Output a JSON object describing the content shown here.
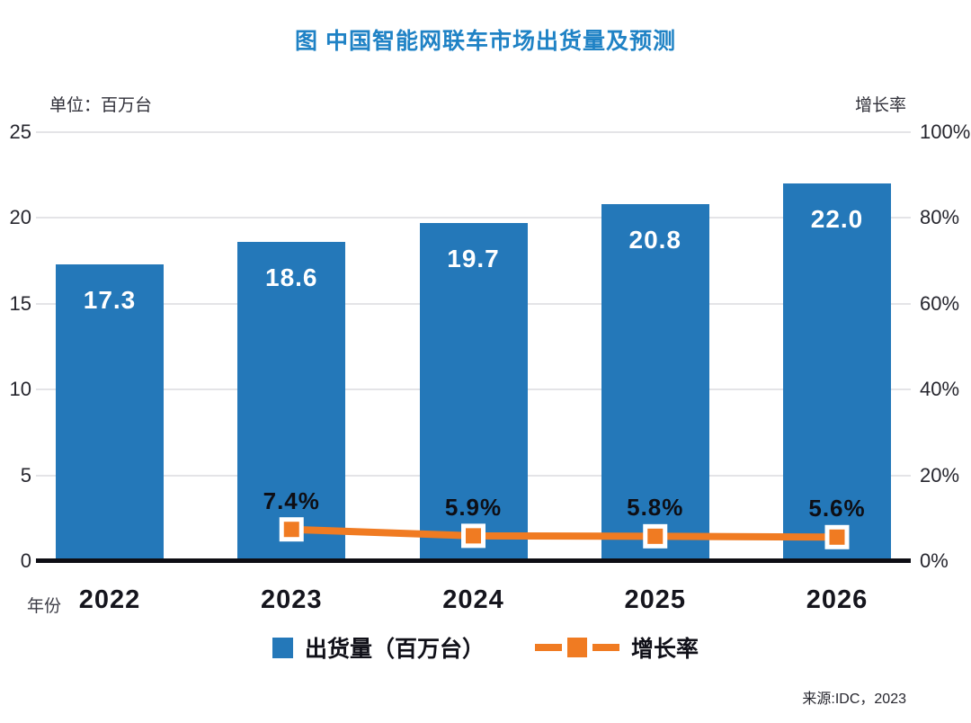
{
  "title": "图  中国智能网联车市场出货量及预测",
  "left_axis_unit": "单位：百万台",
  "right_axis_title": "增长率",
  "x_axis_caption": "年份",
  "source": "来源:IDC，2023",
  "legend": [
    {
      "label": "出货量（百万台）",
      "type": "bar",
      "color": "#2478B9"
    },
    {
      "label": "增长率",
      "type": "line",
      "color": "#F07B22"
    }
  ],
  "colors": {
    "bar": "#2478B9",
    "line": "#F07B22",
    "marker_border": "#FFFFFF",
    "title": "#1F82C5",
    "grid": "#E4E4E7",
    "axis": "#0E0E14"
  },
  "chart_data": {
    "type": "bar+line combo",
    "categories": [
      "2022",
      "2023",
      "2024",
      "2025",
      "2026"
    ],
    "series": [
      {
        "name": "出货量（百万台）",
        "type": "bar",
        "axis": "left",
        "values": [
          17.3,
          18.6,
          19.7,
          20.8,
          22.0
        ],
        "labels": [
          "17.3",
          "18.6",
          "19.7",
          "20.8",
          "22.0"
        ],
        "color": "#2478B9"
      },
      {
        "name": "增长率",
        "type": "line",
        "axis": "right",
        "values": [
          null,
          7.4,
          5.9,
          5.8,
          5.6
        ],
        "labels": [
          null,
          "7.4%",
          "5.9%",
          "5.8%",
          "5.6%"
        ],
        "color": "#F07B22"
      }
    ],
    "left_axis": {
      "title": "单位：百万台",
      "min": 0,
      "max": 25,
      "ticks": [
        0,
        5,
        10,
        15,
        20,
        25
      ]
    },
    "right_axis": {
      "title": "增长率",
      "min": 0,
      "max": 100,
      "ticks": [
        {
          "value": 0,
          "label": "0%"
        },
        {
          "value": 20,
          "label": "20%"
        },
        {
          "value": 40,
          "label": "40%"
        },
        {
          "value": 60,
          "label": "60%"
        },
        {
          "value": 80,
          "label": "80%"
        },
        {
          "value": 100,
          "label": "100%"
        }
      ]
    },
    "grid": true,
    "legend_position": "bottom"
  }
}
